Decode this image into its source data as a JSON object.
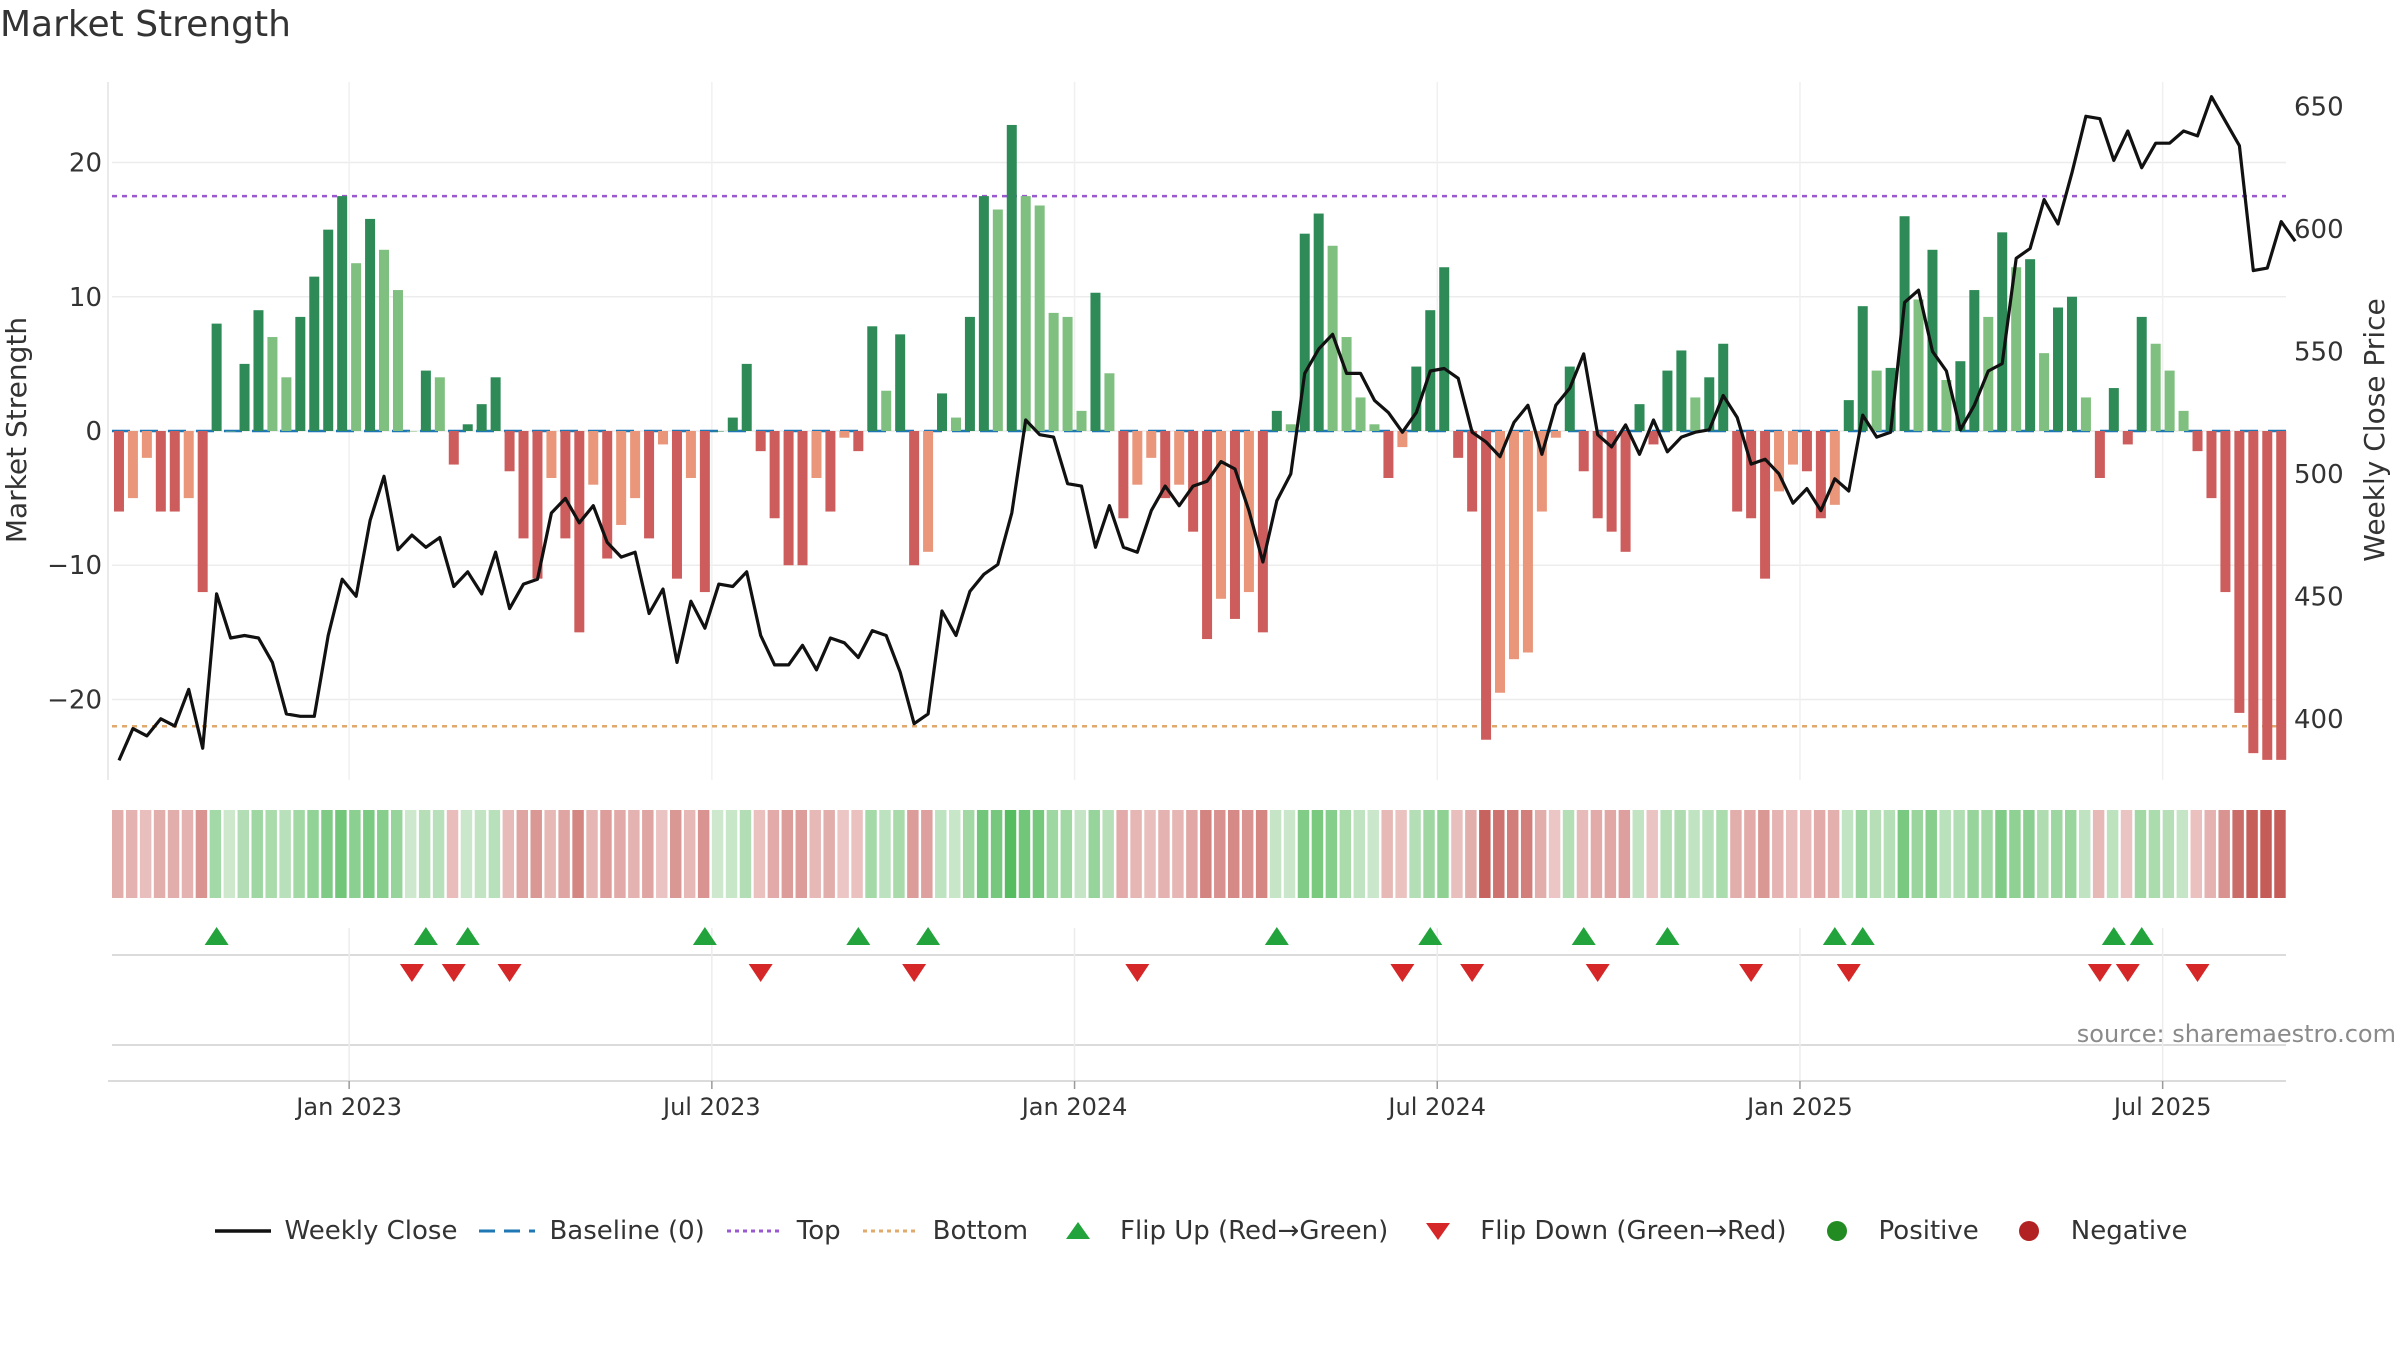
{
  "chart_data": {
    "type": "bar+line",
    "title": "Market Strength",
    "ylabel_left": "Market Strength",
    "ylabel_right": "Weekly Close Price",
    "left_ticks": [
      20,
      10,
      0,
      -10,
      -20
    ],
    "left_tick_labels": [
      "20",
      "10",
      "0",
      "−10",
      "−20"
    ],
    "right_ticks": [
      650,
      600,
      550,
      500,
      450,
      400
    ],
    "ylim_left": [
      -26,
      26
    ],
    "ylim_right": [
      375,
      660
    ],
    "top_line": 17.5,
    "bottom_line": -22,
    "x_tick_labels": [
      "Jan 2023",
      "Jul 2023",
      "Jan 2024",
      "Jul 2024",
      "Jan 2025",
      "Jul 2025"
    ],
    "x_tick_weeks": [
      17,
      43,
      69,
      95,
      121,
      147
    ],
    "source": "source: sharemaestro.com",
    "colors": {
      "strong_green": "#2e8b57",
      "light_green": "#7fbf7f",
      "strong_red": "#cd5c5c",
      "light_red": "#e9967a",
      "line": "#111111",
      "top": "#9b59d0",
      "bottom": "#e0a96d",
      "baseline": "#1f77b4",
      "marker_up": "#22a33b",
      "marker_down": "#d62728"
    },
    "strength": [
      -6,
      -5,
      -2,
      -6,
      -6,
      -5,
      -12,
      8,
      0,
      5,
      9,
      7,
      4,
      8.5,
      11.5,
      15,
      17.5,
      12.5,
      15.8,
      13.5,
      10.5,
      0,
      4.5,
      4,
      -2.5,
      0.5,
      2,
      4,
      -3,
      -8,
      -11,
      -3.5,
      -8,
      -15,
      -4,
      -9.5,
      -7,
      -5,
      -8,
      -1,
      -11,
      -3.5,
      -12,
      0,
      1,
      5,
      -1.5,
      -6.5,
      -10,
      -10,
      -3.5,
      -6,
      -0.5,
      -1.5,
      7.8,
      3,
      7.2,
      -10,
      -9,
      2.8,
      1,
      8.5,
      17.5,
      16.5,
      22.8,
      17.5,
      16.8,
      8.8,
      8.5,
      1.5,
      10.3,
      4.3,
      -6.5,
      -4,
      -2,
      -5,
      -4,
      -7.5,
      -15.5,
      -12.5,
      -14,
      -12,
      -15,
      1.5,
      0.5,
      14.7,
      16.2,
      13.8,
      7,
      2.5,
      0.5,
      -3.5,
      -1.2,
      4.8,
      9,
      12.2,
      -2,
      -6,
      -23,
      -19.5,
      -17,
      -16.5,
      -6,
      -0.5,
      4.8,
      -3,
      -6.5,
      -7.5,
      -9,
      2,
      -1,
      4.5,
      6,
      2.5,
      4,
      6.5,
      -6,
      -6.5,
      -11,
      -4.5,
      -2.5,
      -3,
      -6.5,
      -5.5,
      2.3,
      9.3,
      4.5,
      4.7,
      16,
      9.8,
      13.5,
      3.8,
      5.2,
      10.5,
      8.5,
      14.8,
      12.2,
      12.8,
      5.8,
      9.2,
      10,
      2.5,
      -3.5,
      3.2,
      -1,
      8.5,
      6.5,
      4.5,
      1.5,
      -1.5,
      -5,
      -12,
      -21,
      -24,
      -24.5,
      -24.5
    ],
    "close": [
      383,
      396,
      393,
      400,
      397,
      412,
      388,
      451,
      433,
      434,
      433,
      423,
      402,
      401,
      401,
      434,
      457,
      450,
      481,
      499,
      469,
      475,
      470,
      474,
      454,
      460,
      451,
      468,
      445,
      455,
      457,
      484,
      490,
      480,
      487,
      472,
      466,
      468,
      443,
      453,
      423,
      448,
      437,
      455,
      454,
      460,
      434,
      422,
      422,
      430,
      420,
      433,
      431,
      425,
      436,
      434,
      419,
      398,
      402,
      444,
      434,
      452,
      459,
      463,
      484,
      522,
      516,
      515,
      496,
      495,
      470,
      487,
      470,
      468,
      485,
      495,
      487,
      495,
      497,
      505,
      502,
      485,
      464,
      489,
      500,
      541,
      551,
      557,
      541,
      541,
      530,
      525,
      517,
      525,
      542,
      543,
      539,
      517,
      513,
      507,
      521,
      528,
      508,
      528,
      535,
      549,
      516,
      511,
      520,
      508,
      522,
      509,
      515,
      517,
      518,
      532,
      523,
      504,
      506,
      500,
      488,
      494,
      485,
      498,
      493,
      524,
      515,
      517,
      570,
      575,
      550,
      542,
      518,
      528,
      542,
      545,
      588,
      592,
      612,
      602,
      623,
      646,
      645,
      628,
      640,
      625,
      635,
      635,
      640,
      638,
      654,
      644,
      634,
      583,
      584,
      603,
      595
    ],
    "flips_up": [
      7,
      22,
      25,
      42,
      53,
      58,
      83,
      94,
      105,
      111,
      123,
      125,
      143,
      145
    ],
    "flips_down": [
      21,
      24,
      28,
      46,
      57,
      73,
      92,
      97,
      106,
      117,
      124,
      142,
      144,
      149
    ],
    "legend": [
      {
        "key": "line",
        "label": "Weekly Close"
      },
      {
        "key": "baseline",
        "label": "Baseline (0)"
      },
      {
        "key": "top",
        "label": "Top"
      },
      {
        "key": "bottom",
        "label": "Bottom"
      },
      {
        "key": "up",
        "label": "Flip Up (Red→Green)"
      },
      {
        "key": "down",
        "label": "Flip Down (Green→Red)"
      },
      {
        "key": "positive",
        "label": "Positive",
        "color": "#228b22"
      },
      {
        "key": "negative",
        "label": "Negative",
        "color": "#b22222"
      }
    ]
  }
}
